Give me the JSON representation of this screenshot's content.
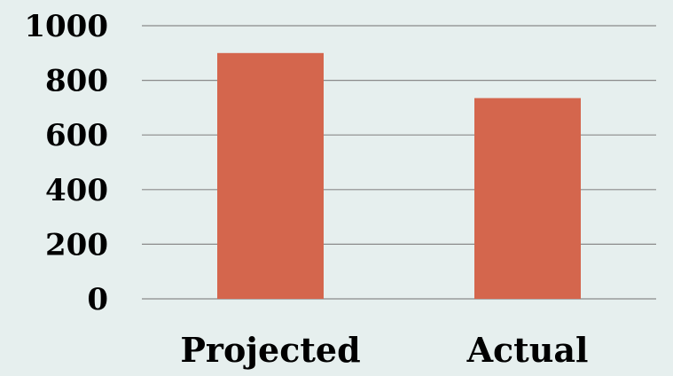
{
  "chart_data": {
    "type": "bar",
    "categories": [
      "Projected",
      "Actual"
    ],
    "values": [
      900,
      735
    ],
    "ylim": [
      0,
      1000
    ],
    "yticks": [
      "0",
      "200",
      "400",
      "600",
      "800",
      "1000"
    ],
    "title": "",
    "xlabel": "",
    "ylabel": "",
    "grid": true,
    "legend": "none",
    "bar_color": "#d4664d",
    "background_color": "#e6efee",
    "grid_color": "#8a8a8a"
  }
}
